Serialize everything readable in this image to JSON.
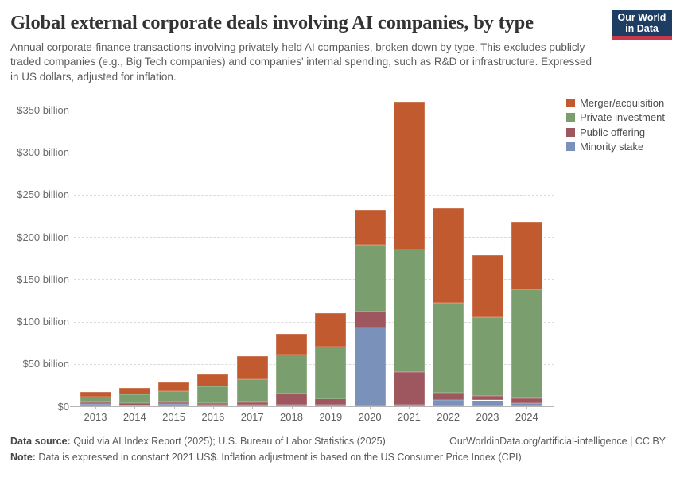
{
  "header": {
    "title": "Global external corporate deals involving AI companies, by type",
    "subtitle": "Annual corporate-finance transactions involving privately held AI companies, broken down by type. This excludes publicly traded companies (e.g., Big Tech companies) and companies' internal spending, such as R&D or infrastructure. Expressed in US dollars, adjusted for inflation.",
    "logo": {
      "line1": "Our World",
      "line2": "in Data"
    }
  },
  "chart_data": {
    "type": "bar",
    "stacked": true,
    "title": "Global external corporate deals involving AI companies, by type",
    "unit": "US$ billion (constant 2021 US$)",
    "categories": [
      "2013",
      "2014",
      "2015",
      "2016",
      "2017",
      "2018",
      "2019",
      "2020",
      "2021",
      "2022",
      "2023",
      "2024"
    ],
    "series": [
      {
        "name": "Minority stake",
        "color": "#7a92ba",
        "values": [
          2.5,
          1,
          2.5,
          2,
          2,
          2,
          2,
          93,
          2,
          8,
          7,
          4
        ]
      },
      {
        "name": "Public offering",
        "color": "#9e575e",
        "values": [
          2,
          2.5,
          2,
          2,
          3,
          13.5,
          7,
          19,
          38,
          8,
          5,
          5
        ]
      },
      {
        "name": "Private investment",
        "color": "#7b9e6f",
        "values": [
          6.5,
          10.5,
          13.5,
          19.5,
          27,
          46,
          61.5,
          78.5,
          145,
          106,
          93,
          129
        ]
      },
      {
        "name": "Merger/acquisition",
        "color": "#c25a2f",
        "values": [
          5.5,
          8,
          10.5,
          14.5,
          27,
          24,
          39.5,
          41.5,
          175,
          112,
          73.5,
          80
        ]
      }
    ],
    "totals": [
      16.5,
      22,
      28.5,
      38,
      59,
      85.5,
      110,
      232,
      360,
      234,
      178.5,
      218
    ],
    "stack_order": "bottom-to-top",
    "legend_order": [
      "Merger/acquisition",
      "Private investment",
      "Public offering",
      "Minority stake"
    ],
    "legend_position": "top-right",
    "ylim": [
      0,
      350
    ],
    "ytick_interval": 50,
    "ytick_labels": [
      "$0",
      "$50 billion",
      "$100 billion",
      "$150 billion",
      "$200 billion",
      "$250 billion",
      "$300 billion",
      "$350 billion"
    ],
    "grid": "horizontal-dashed"
  },
  "footer": {
    "source_label": "Data source:",
    "source_text": " Quid via AI Index Report (2025); U.S. Bureau of Labor Statistics (2025)",
    "link_text": "OurWorldinData.org/artificial-intelligence | CC BY",
    "note_label": "Note:",
    "note_text": " Data is expressed in constant 2021 US$. Inflation adjustment is based on the US Consumer Price Index (CPI)."
  }
}
